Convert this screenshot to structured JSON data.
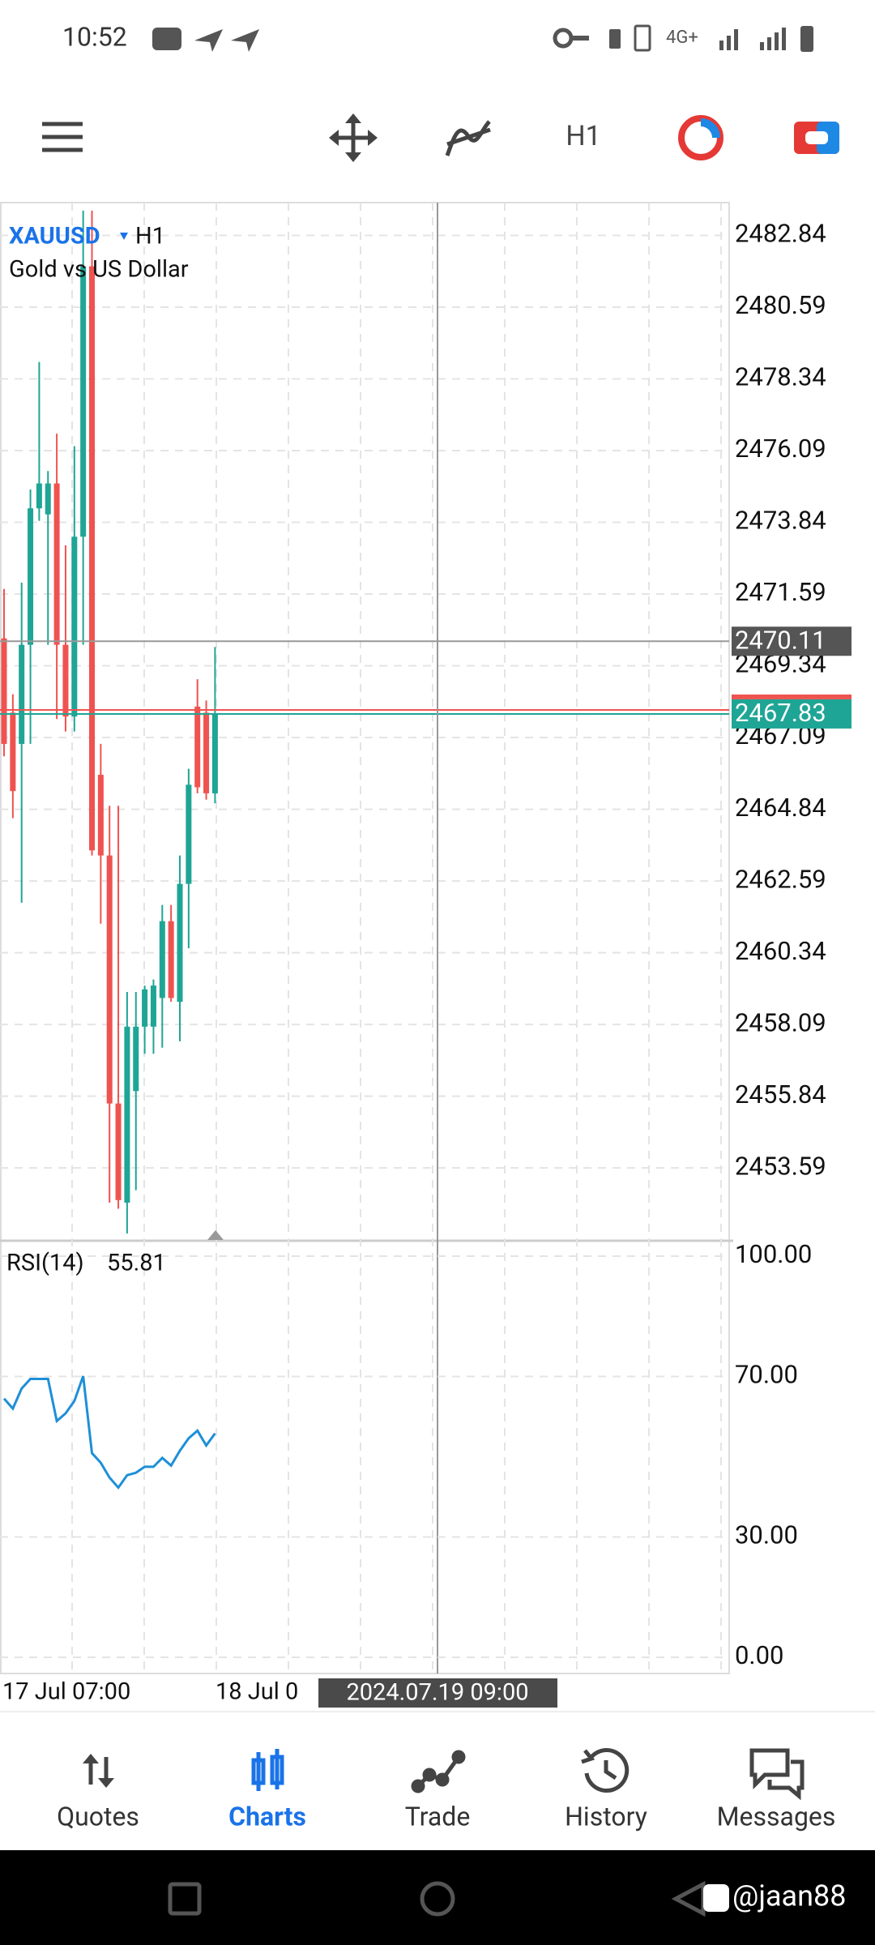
{
  "status_bar": {
    "time": "10:52",
    "network": "4G+"
  },
  "toolbar": {
    "timeframe": "H1"
  },
  "chart_data": [
    {
      "type": "candlestick",
      "symbol": "XAUUSD",
      "timeframe": "H1",
      "description": "Gold vs US Dollar",
      "open": [
        2470.2,
        2467.87,
        2466.89,
        2470.0,
        2474.28,
        2474.09,
        2475.06,
        2470.0,
        2467.75,
        2473.39,
        2481.87,
        2465.92,
        2463.39,
        2455.61,
        2452.5,
        2456.0,
        2458.02,
        2458.02,
        2458.92,
        2461.33,
        2458.8,
        2462.5,
        2468.06,
        2467.87,
        2465.34
      ],
      "high": [
        2471.75,
        2468.45,
        2471.95,
        2474.87,
        2478.87,
        2475.45,
        2476.62,
        2473.12,
        2476.23,
        2483.62,
        2483.62,
        2466.89,
        2464.95,
        2464.95,
        2459.11,
        2459.11,
        2459.31,
        2459.5,
        2461.84,
        2461.84,
        2463.39,
        2466.11,
        2468.92,
        2468.25,
        2469.93
      ],
      "low": [
        2466.5,
        2464.56,
        2461.91,
        2466.89,
        2473.89,
        2470.0,
        2467.67,
        2467.28,
        2467.28,
        2470.0,
        2463.39,
        2461.25,
        2452.5,
        2452.31,
        2451.53,
        2452.89,
        2457.17,
        2457.17,
        2457.36,
        2458.8,
        2457.56,
        2460.48,
        2465.34,
        2465.14,
        2465.03
      ],
      "close": [
        2466.89,
        2465.41,
        2470.0,
        2474.28,
        2475.06,
        2475.06,
        2470.0,
        2467.75,
        2473.39,
        2481.87,
        2463.55,
        2463.39,
        2455.61,
        2452.58,
        2458.02,
        2458.02,
        2459.19,
        2459.31,
        2461.33,
        2458.92,
        2462.5,
        2465.61,
        2465.53,
        2465.34,
        2467.83
      ],
      "up_color": "#1fa595",
      "down_color": "#ef5350",
      "ylim": [
        2451.33,
        2483.87
      ],
      "yticks": [
        2482.84,
        2480.59,
        2478.34,
        2476.09,
        2473.84,
        2471.59,
        2469.34,
        2467.09,
        2464.84,
        2462.59,
        2460.34,
        2458.09,
        2455.84,
        2453.59
      ],
      "grid": true,
      "crosshair": {
        "price": 2470.11,
        "time": "2024.07.19 09:00"
      },
      "last_price": 2467.83,
      "x_labels": [
        "17 Jul 07:00",
        "18 Jul 0"
      ]
    },
    {
      "type": "line",
      "title": "RSI(14)",
      "current": 55.81,
      "color": "#1e8fd8",
      "values": [
        64.5,
        62.0,
        67.0,
        69.4,
        69.4,
        69.4,
        58.9,
        60.8,
        63.9,
        70.1,
        50.9,
        48.5,
        44.8,
        42.3,
        45.4,
        46.0,
        47.5,
        47.5,
        49.7,
        47.8,
        51.5,
        54.6,
        56.5,
        52.8,
        55.81
      ],
      "ylim": [
        0,
        100
      ],
      "yticks": [
        {
          "value": 100,
          "label": "100.00"
        },
        {
          "value": 70,
          "label": "70.00"
        },
        {
          "value": 30,
          "label": "30.00"
        },
        {
          "value": 0,
          "label": "0.00"
        }
      ]
    }
  ],
  "nav": {
    "items": [
      "Quotes",
      "Charts",
      "Trade",
      "History",
      "Messages"
    ],
    "active": "Charts"
  },
  "watermark": "@jaan88"
}
